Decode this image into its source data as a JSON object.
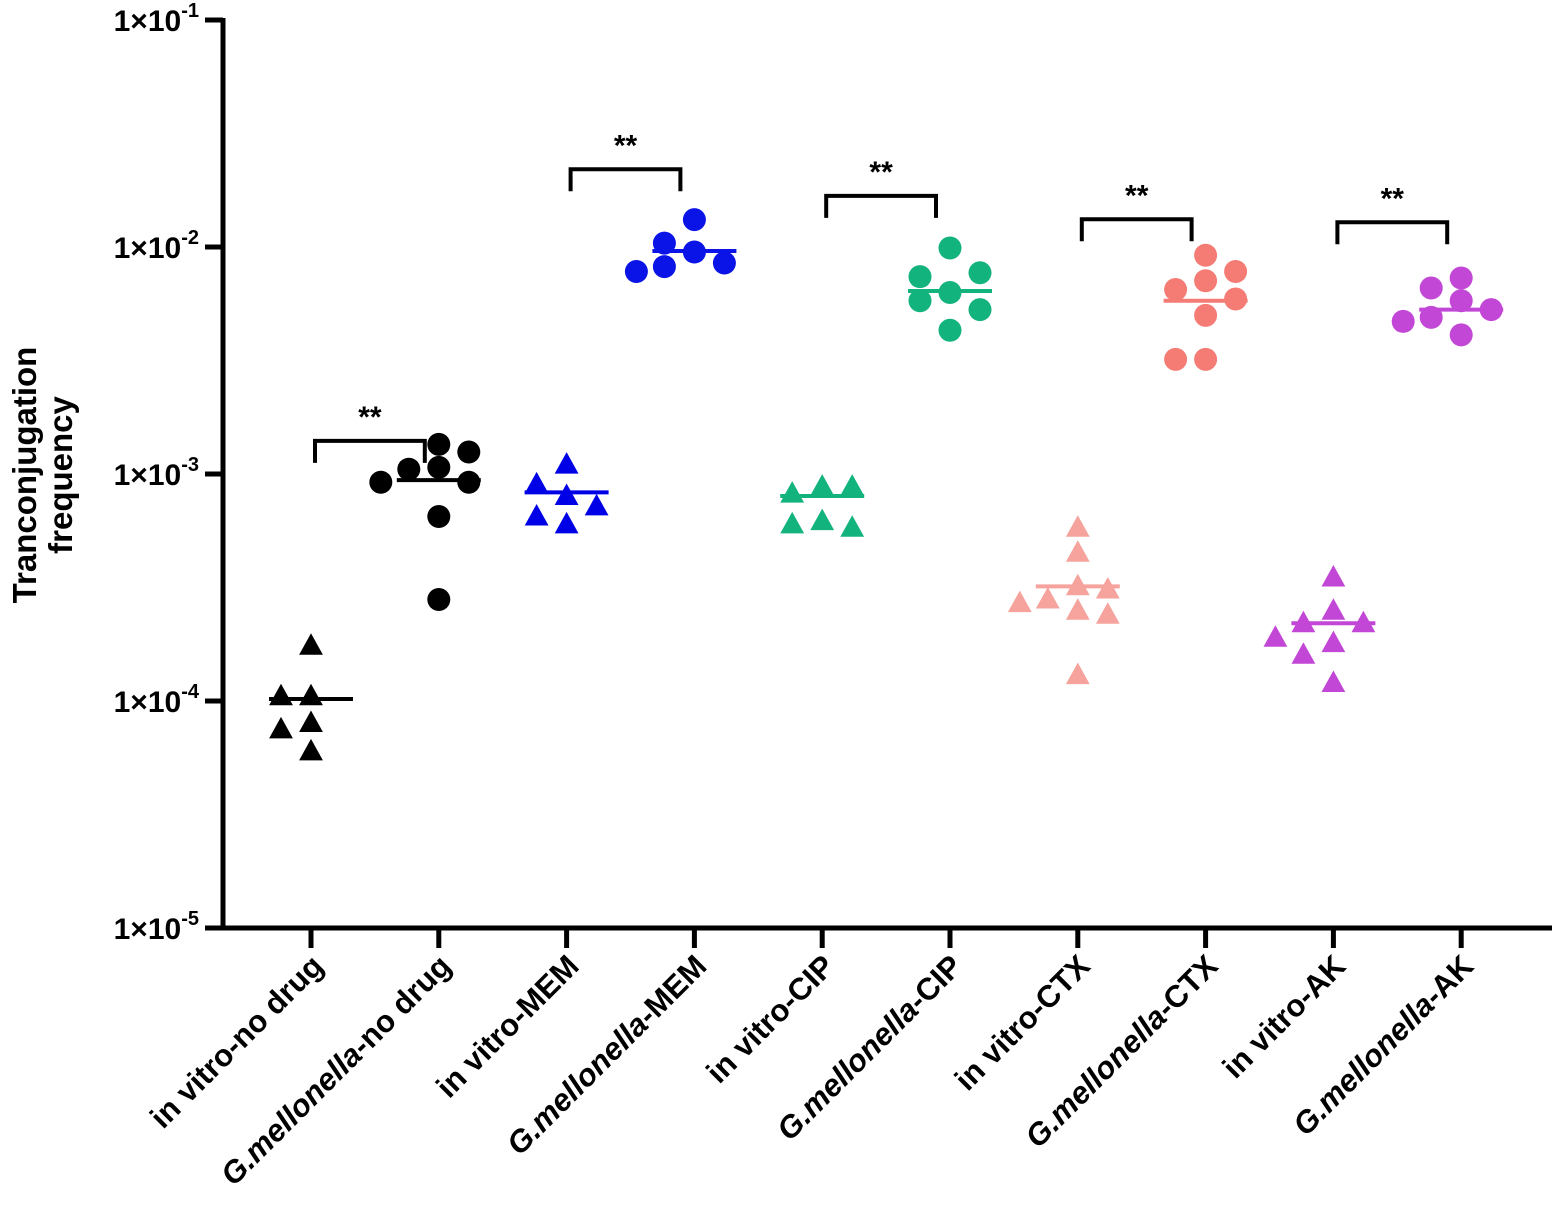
{
  "chart_data": {
    "type": "scatter",
    "subtype": "dot-plot-with-median",
    "yscale": "log",
    "ylim": [
      1e-05,
      0.1
    ],
    "ylabel_lines": [
      "Tranconjugation",
      "frequency"
    ],
    "yticks": [
      {
        "value": 0.1,
        "base": "1×10",
        "exp": "-1"
      },
      {
        "value": 0.01,
        "base": "1×10",
        "exp": "-2"
      },
      {
        "value": 0.001,
        "base": "1×10",
        "exp": "-3"
      },
      {
        "value": 0.0001,
        "base": "1×10",
        "exp": "-4"
      },
      {
        "value": 1e-05,
        "base": "1×10",
        "exp": "-5"
      }
    ],
    "categories": [
      {
        "prefix": "in vitro",
        "italic": "",
        "suffix": "-no drug"
      },
      {
        "prefix": "",
        "italic": "G.mellonella",
        "suffix": "-no drug"
      },
      {
        "prefix": "in vitro",
        "italic": "",
        "suffix": "-MEM"
      },
      {
        "prefix": "",
        "italic": "G.mellonella",
        "suffix": "-MEM"
      },
      {
        "prefix": "in vitro",
        "italic": "",
        "suffix": "-CIP"
      },
      {
        "prefix": "",
        "italic": "G.mellonella",
        "suffix": "-CIP"
      },
      {
        "prefix": "in vitro",
        "italic": "",
        "suffix": "-CTX"
      },
      {
        "prefix": "",
        "italic": "G.mellonella",
        "suffix": "-CTX"
      },
      {
        "prefix": "in vitro",
        "italic": "",
        "suffix": "-AK"
      },
      {
        "prefix": "",
        "italic": "G.mellonella",
        "suffix": "-AK"
      }
    ],
    "series": [
      {
        "name": "in vitro-no drug",
        "marker": "triangle",
        "color": "#000000",
        "median": 0.000102,
        "values": [
          0.000175,
          0.000105,
          0.000105,
          8e-05,
          7.5e-05,
          6e-05
        ]
      },
      {
        "name": "G.mellonella-no drug",
        "marker": "circle",
        "color": "#000000",
        "median": 0.00094,
        "values": [
          0.00107,
          0.00105,
          0.00092,
          0.00092,
          0.00135,
          0.00125,
          0.00065,
          0.00028
        ]
      },
      {
        "name": "in vitro-MEM",
        "marker": "triangle",
        "color": "#0000e6",
        "median": 0.00083,
        "values": [
          0.0008,
          0.0009,
          0.0011,
          0.00072,
          0.00065,
          0.0006
        ]
      },
      {
        "name": "G.mellonella-MEM",
        "marker": "circle",
        "color": "#0a14e6",
        "median": 0.0096,
        "values": [
          0.0095,
          0.0132,
          0.0104,
          0.0082,
          0.0085,
          0.0078
        ]
      },
      {
        "name": "in vitro-CIP",
        "marker": "triangle",
        "color": "#13b37d",
        "median": 0.0008,
        "values": [
          0.00088,
          0.00082,
          0.00088,
          0.00062,
          0.0006,
          0.00058
        ]
      },
      {
        "name": "G.mellonella-CIP",
        "marker": "circle",
        "color": "#13b37d",
        "median": 0.0064,
        "values": [
          0.0063,
          0.0058,
          0.0099,
          0.0074,
          0.0077,
          0.0053,
          0.0043
        ]
      },
      {
        "name": "in vitro-CTX",
        "marker": "triangle",
        "color": "#f5a39c",
        "median": 0.00032,
        "values": [
          0.00058,
          0.00045,
          0.00032,
          0.00028,
          0.00031,
          0.00027,
          0.00025,
          0.00024,
          0.00013
        ]
      },
      {
        "name": "G.mellonella-CTX",
        "marker": "circle",
        "color": "#f47c74",
        "median": 0.0058,
        "values": [
          0.0092,
          0.0071,
          0.0065,
          0.0078,
          0.0059,
          0.005,
          0.0032,
          0.0032
        ]
      },
      {
        "name": "in vitro-AK",
        "marker": "triangle",
        "color": "#c247d6",
        "median": 0.00022,
        "values": [
          0.00035,
          0.00025,
          0.00022,
          0.00022,
          0.00018,
          0.00016,
          0.00012,
          0.00019
        ]
      },
      {
        "name": "G.mellonella-AK",
        "marker": "circle",
        "color": "#c247d6",
        "median": 0.0053,
        "values": [
          0.0073,
          0.0066,
          0.0058,
          0.0053,
          0.0049,
          0.0047,
          0.0041
        ]
      }
    ],
    "significance": [
      {
        "left": 0,
        "right": 1,
        "label": "**",
        "y_value": 0.0014
      },
      {
        "left": 2,
        "right": 3,
        "label": "**",
        "y_value": 0.022
      },
      {
        "left": 4,
        "right": 5,
        "label": "**",
        "y_value": 0.0168
      },
      {
        "left": 6,
        "right": 7,
        "label": "**",
        "y_value": 0.01325
      },
      {
        "left": 8,
        "right": 9,
        "label": "**",
        "y_value": 0.01285
      }
    ]
  }
}
